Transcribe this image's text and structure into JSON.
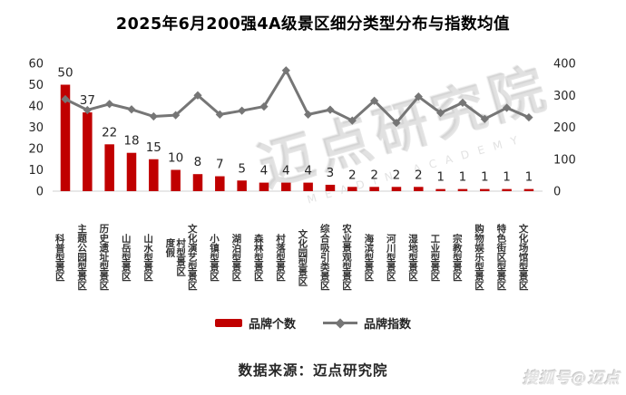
{
  "chart_data": {
    "type": "combo",
    "title": "2025年6月200强4A级景区细分类型分布与指数均值",
    "categories": [
      "科普型景区",
      "主题公园型景区",
      "历史遗址型景区",
      "山岳型景区",
      "山水型景区",
      "度假\n村型景区",
      "文化演艺型景区",
      "小镇型景区",
      "湖泊型景区",
      "森林型景区",
      "村落型景区",
      "文化园型景区",
      "综合吸引类景区",
      "农业景观型景区",
      "海滨型景区",
      "河川型景区",
      "湿地型景区",
      "工业型景区",
      "宗教型景区",
      "购物娱乐型景区",
      "特色街区型景区",
      "文化场馆型景区"
    ],
    "series": [
      {
        "name": "品牌个数",
        "type": "bar",
        "axis": "left",
        "color": "#C00000",
        "values": [
          50,
          37,
          22,
          18,
          15,
          10,
          8,
          7,
          5,
          4,
          4,
          4,
          3,
          2,
          2,
          2,
          2,
          1,
          1,
          1,
          1,
          1
        ]
      },
      {
        "name": "品牌指数",
        "type": "line",
        "axis": "right",
        "color": "#767676",
        "marker": "diamond",
        "values": [
          288,
          254,
          273,
          256,
          234,
          238,
          300,
          240,
          252,
          265,
          378,
          240,
          255,
          221,
          283,
          214,
          296,
          245,
          277,
          226,
          261,
          231
        ]
      }
    ],
    "left_axis": {
      "min": 0,
      "max": 60,
      "ticks": [
        0,
        10,
        20,
        30,
        40,
        50,
        60
      ]
    },
    "right_axis": {
      "min": 0,
      "max": 400,
      "ticks": [
        0,
        100,
        200,
        300,
        400
      ]
    },
    "grid": false,
    "bar_value_labels": true,
    "legend_position": "bottom"
  },
  "source_note": "数据来源：迈点研究院",
  "watermark": {
    "main": "迈点研究院",
    "sub": "MEADIN ACADEMY",
    "corner": "搜狐号@迈点"
  },
  "colors": {
    "bar": "#C00000",
    "line": "#767676",
    "axis_line": "#D9D9D9",
    "text": "#262626"
  }
}
